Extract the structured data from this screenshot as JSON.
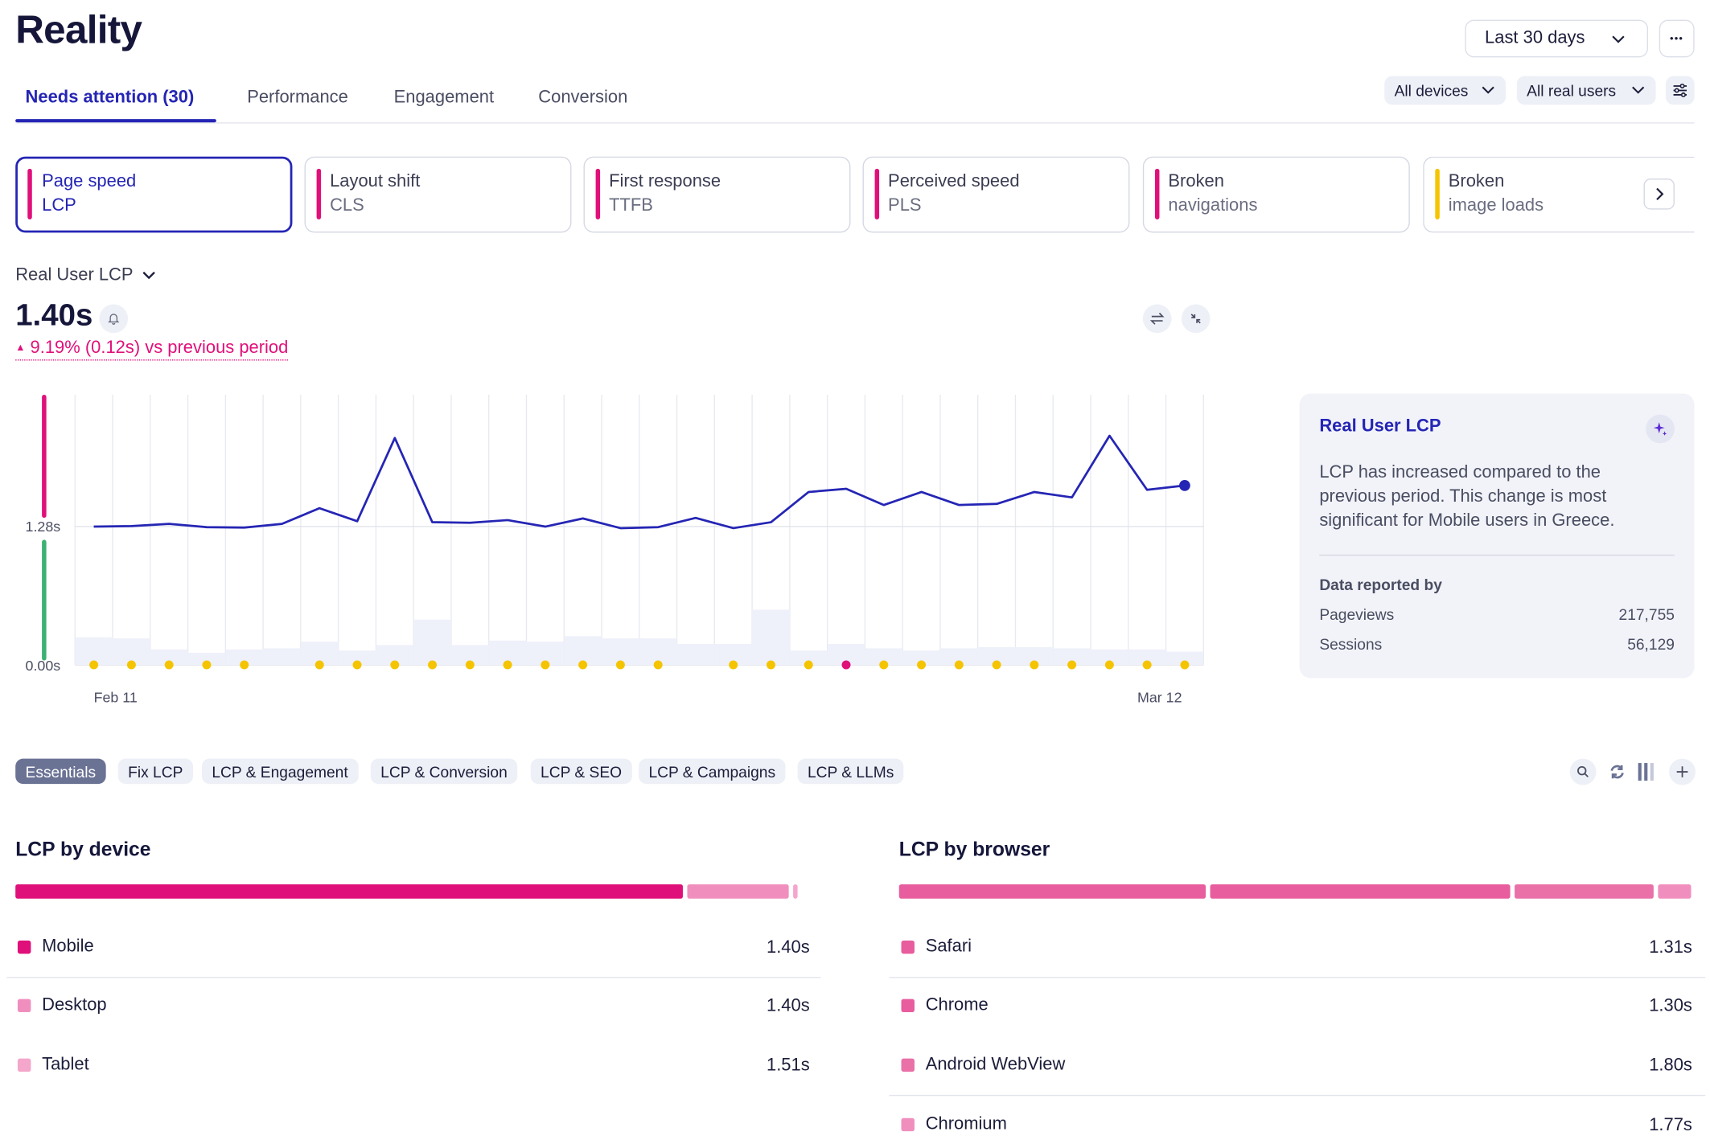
{
  "page": {
    "title": "Reality"
  },
  "header": {
    "date_range": "Last 30 days",
    "more_label": "•••"
  },
  "tabs": [
    {
      "label": "Needs attention (30)",
      "active": true
    },
    {
      "label": "Performance"
    },
    {
      "label": "Engagement"
    },
    {
      "label": "Conversion"
    }
  ],
  "filters": {
    "devices": "All devices",
    "users": "All real users"
  },
  "metric_cards": [
    {
      "line1": "Page speed",
      "line2": "LCP",
      "status_color": "#e0107a",
      "active": true
    },
    {
      "line1": "Layout shift",
      "line2": "CLS",
      "status_color": "#e0107a"
    },
    {
      "line1": "First response",
      "line2": "TTFB",
      "status_color": "#e0107a"
    },
    {
      "line1": "Perceived speed",
      "line2": "PLS",
      "status_color": "#e0107a"
    },
    {
      "line1": "Broken",
      "line2": "navigations",
      "status_color": "#e0107a"
    },
    {
      "line1": "Broken",
      "line2": "image loads",
      "status_color": "#f5c400"
    }
  ],
  "metric": {
    "selector_label": "Real User LCP",
    "value": "1.40s",
    "delta_text": "9.19% (0.12s) vs previous period"
  },
  "chart_data": {
    "type": "line",
    "x_labels": [
      "Feb 11",
      "Mar 12"
    ],
    "y_ticks": [
      "1.28s",
      "0.00s"
    ],
    "ylim": [
      0,
      2.5
    ],
    "threshold": 1.28,
    "series": [
      {
        "values": [
          1.28,
          1.285,
          1.305,
          1.275,
          1.27,
          1.305,
          1.45,
          1.33,
          2.1,
          1.32,
          1.315,
          1.34,
          1.28,
          1.355,
          1.265,
          1.275,
          1.36,
          1.265,
          1.32,
          1.6,
          1.63,
          1.48,
          1.6,
          1.48,
          1.49,
          1.6,
          1.55,
          2.12,
          1.62,
          1.66
        ],
        "color": "#2525b5"
      }
    ],
    "volume": [
      0.25,
      0.24,
      0.14,
      0.11,
      0.14,
      0.15,
      0.21,
      0.13,
      0.18,
      0.41,
      0.18,
      0.22,
      0.21,
      0.26,
      0.24,
      0.24,
      0.19,
      0.19,
      0.5,
      0.13,
      0.19,
      0.15,
      0.13,
      0.15,
      0.16,
      0.16,
      0.15,
      0.14,
      0.14,
      0.12
    ],
    "event_dots": [
      "y",
      "y",
      "y",
      "y",
      "y",
      "",
      "y",
      "y",
      "y",
      "y",
      "y",
      "y",
      "y",
      "y",
      "y",
      "y",
      "",
      "y",
      "y",
      "y",
      "r",
      "y",
      "y",
      "y",
      "y",
      "y",
      "y",
      "y",
      "y",
      "y"
    ],
    "dot_colors": {
      "y": "#f5c400",
      "r": "#e0107a"
    },
    "status_bar": {
      "poor": "#e0107a",
      "good": "#3bb273"
    }
  },
  "insight": {
    "title": "Real User LCP",
    "body": "LCP has increased compared to the previous period. This change is most significant for Mobile users in Greece.",
    "data_heading": "Data reported by",
    "rows": [
      {
        "label": "Pageviews",
        "value": "217,755"
      },
      {
        "label": "Sessions",
        "value": "56,129"
      }
    ]
  },
  "chips": [
    "Essentials",
    "Fix LCP",
    "LCP & Engagement",
    "LCP & Conversion",
    "LCP & SEO",
    "LCP & Campaigns",
    "LCP & LLMs"
  ],
  "device": {
    "title": "LCP by device",
    "shares": [
      0.838,
      0.127,
      0.006
    ],
    "rows": [
      {
        "label": "Mobile",
        "value": "1.40s",
        "color": "#e0107a"
      },
      {
        "label": "Desktop",
        "value": "1.40s",
        "color": "#f08fbe"
      },
      {
        "label": "Tablet",
        "value": "1.51s",
        "color": "#f4a6cb"
      }
    ]
  },
  "browser": {
    "title": "LCP by browser",
    "shares": [
      0.385,
      0.378,
      0.174,
      0.042
    ],
    "rows": [
      {
        "label": "Safari",
        "value": "1.31s",
        "color": "#e85d9e"
      },
      {
        "label": "Chrome",
        "value": "1.30s",
        "color": "#e85d9e"
      },
      {
        "label": "Android WebView",
        "value": "1.80s",
        "color": "#ea70a8"
      },
      {
        "label": "Chromium",
        "value": "1.77s",
        "color": "#f08fbe"
      }
    ]
  }
}
